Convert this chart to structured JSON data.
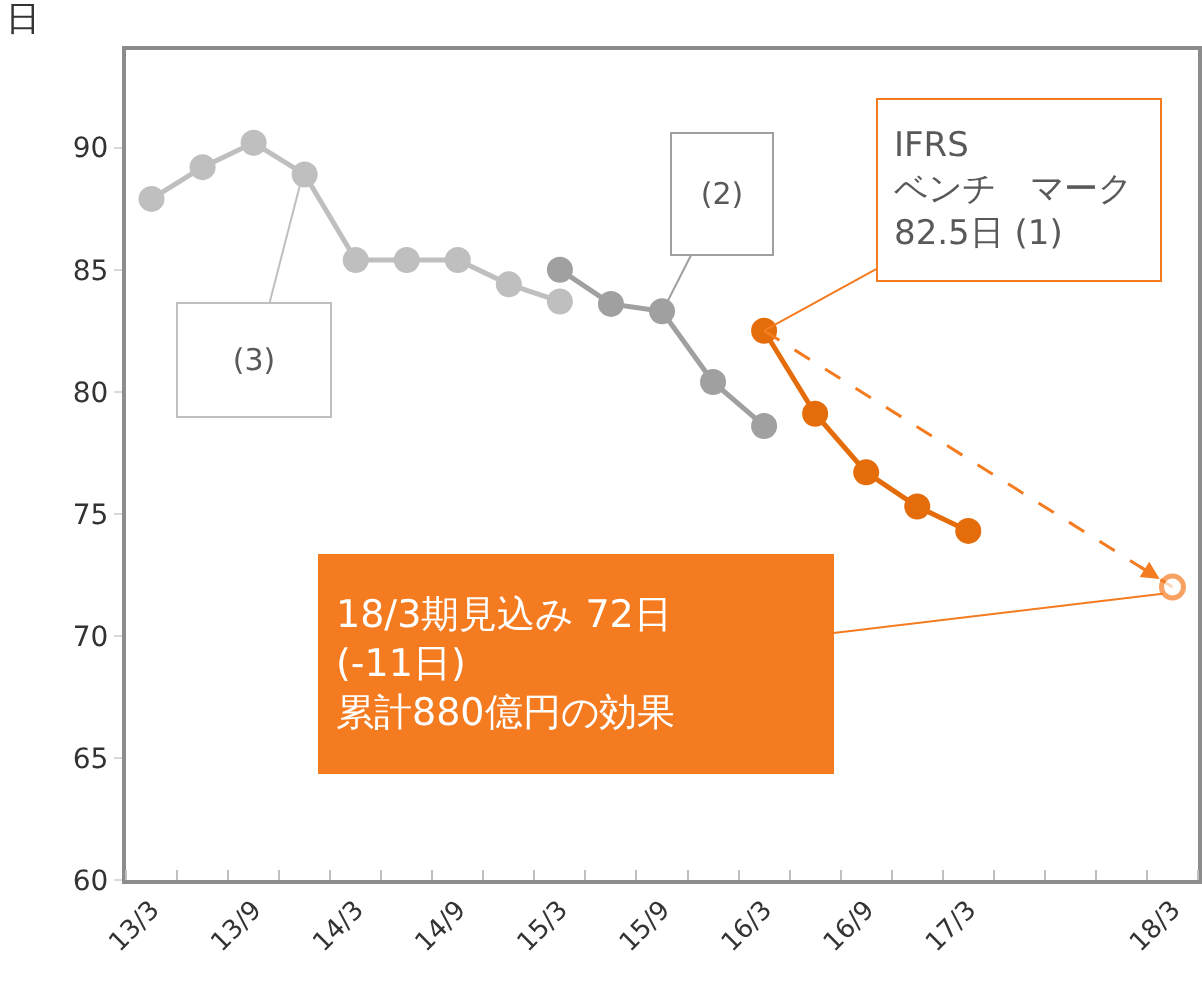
{
  "chart_data": {
    "type": "line",
    "ylabel": "日",
    "categories": [
      "13/3",
      null,
      "13/9",
      null,
      "14/3",
      null,
      "14/9",
      null,
      "15/3",
      null,
      "15/9",
      null,
      "16/3",
      null,
      "16/9",
      null,
      "17/3",
      null,
      null,
      null,
      "18/3"
    ],
    "series": [
      {
        "color": "#bfbfbf",
        "values": [
          87.9,
          89.2,
          90.2,
          88.9,
          85.4,
          85.4,
          85.4,
          84.4,
          83.7,
          null,
          null,
          null,
          null,
          null,
          null,
          null,
          null,
          null,
          null,
          null,
          null
        ]
      },
      {
        "color": "#a0a0a0",
        "values": [
          null,
          null,
          null,
          null,
          null,
          null,
          null,
          null,
          85.0,
          83.6,
          83.3,
          80.4,
          78.6,
          null,
          null,
          null,
          null,
          null,
          null,
          null,
          null
        ]
      },
      {
        "color": "#e46c0a",
        "values": [
          null,
          null,
          null,
          null,
          null,
          null,
          null,
          null,
          null,
          null,
          null,
          null,
          82.5,
          79.1,
          76.7,
          75.3,
          74.3,
          null,
          null,
          null,
          null
        ]
      },
      {
        "color": "#f47b20",
        "line_style": "dashed",
        "values": [
          null,
          null,
          null,
          null,
          null,
          null,
          null,
          null,
          null,
          null,
          null,
          null,
          82.5,
          null,
          null,
          null,
          null,
          null,
          null,
          null,
          72
        ]
      }
    ],
    "ylim": [
      60,
      94
    ],
    "yticks": [
      60,
      65,
      70,
      75,
      80,
      85,
      90
    ],
    "marker": "circle",
    "annotations": [
      "(3)",
      "(2)",
      {
        "text": "IFRS\nベンチ　マーク\n82.5日 (1)",
        "x": "16/3",
        "y": 82.5
      },
      "18/3期見込み 72日\n(-11日)\n累計880億円の効果"
    ]
  }
}
